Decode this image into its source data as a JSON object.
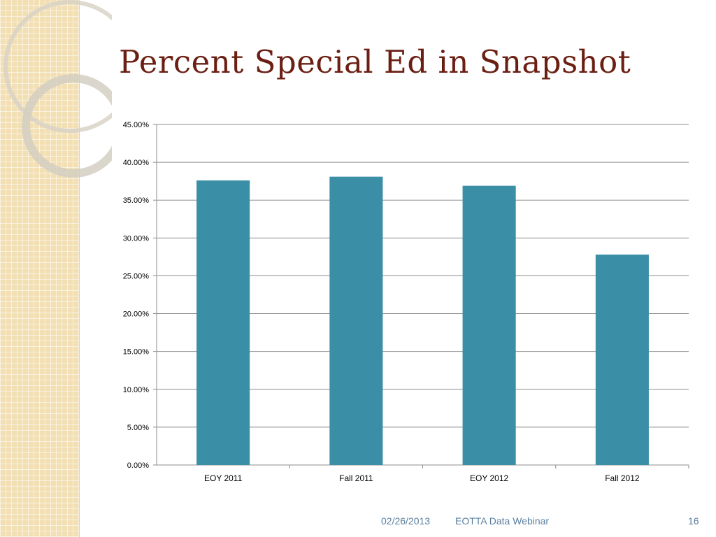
{
  "slide": {
    "title": "Percent Special Ed in Snapshot",
    "footer": {
      "date": "02/26/2013",
      "title": "EOTTA Data Webinar",
      "page": "16"
    }
  },
  "colors": {
    "bar": "#3a8fa6",
    "title": "#6b1f13",
    "strip": "#f2dfb4",
    "footer": "#5a7fa0"
  },
  "chart_data": {
    "type": "bar",
    "title": "",
    "xlabel": "",
    "ylabel": "",
    "categories": [
      "EOY 2011",
      "Fall 2011",
      "EOY 2012",
      "Fall 2012"
    ],
    "series": [
      {
        "values": [
          37.6,
          38.1,
          36.9,
          27.8
        ]
      }
    ],
    "ylim": [
      0,
      45
    ],
    "yticks": [
      0,
      5,
      10,
      15,
      20,
      25,
      30,
      35,
      40,
      45
    ],
    "ytick_labels": [
      "0.00%",
      "5.00%",
      "10.00%",
      "15.00%",
      "20.00%",
      "25.00%",
      "30.00%",
      "35.00%",
      "40.00%",
      "45.00%"
    ],
    "grid": true,
    "legend": "none"
  }
}
